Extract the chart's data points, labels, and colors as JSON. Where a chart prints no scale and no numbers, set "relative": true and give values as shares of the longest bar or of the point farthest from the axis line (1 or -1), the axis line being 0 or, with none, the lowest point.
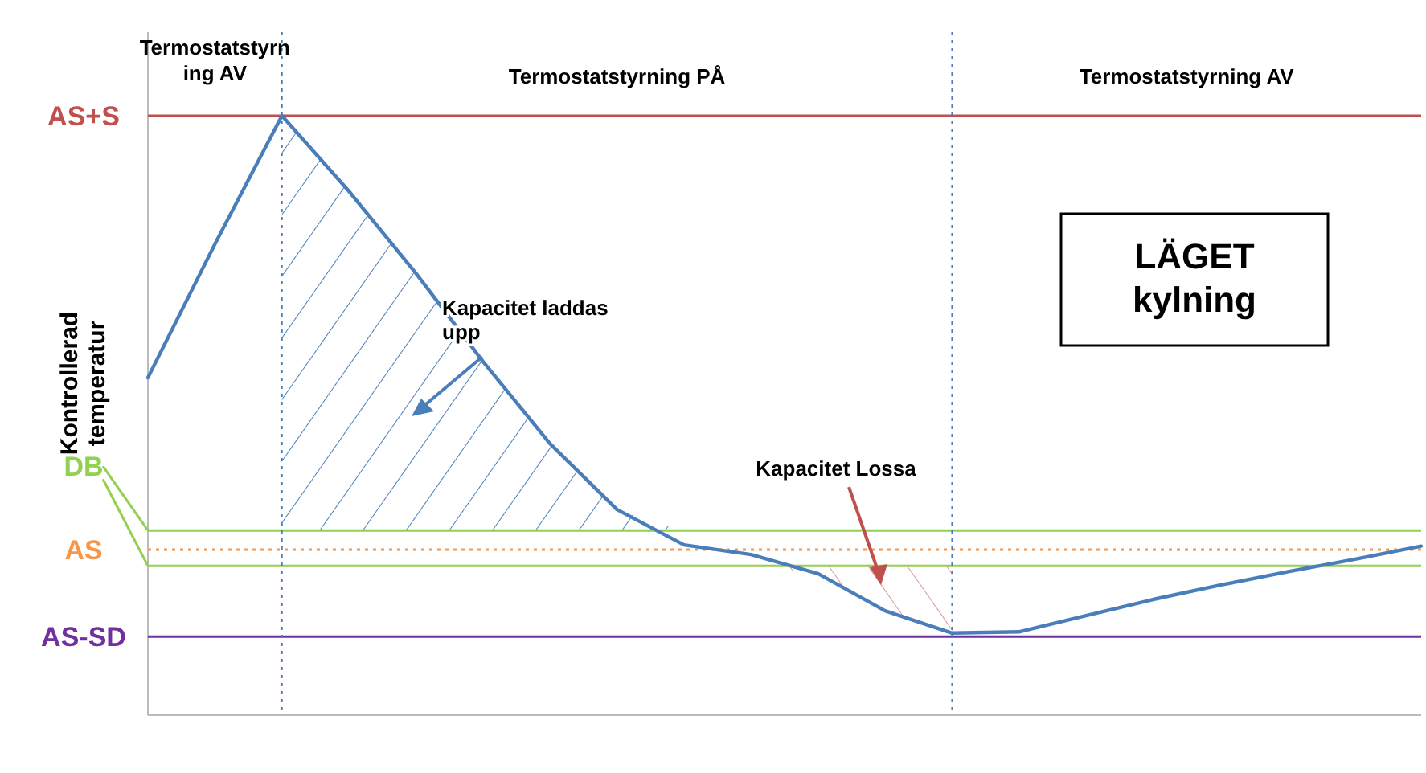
{
  "chart_data": {
    "type": "line",
    "relative": true,
    "ylabel": "Kontrollerad temperatur",
    "categories": [
      null,
      null,
      null,
      null,
      null,
      null,
      null,
      null,
      null,
      null,
      null,
      null,
      null,
      null,
      null,
      null,
      null,
      null,
      null,
      null
    ],
    "series": [
      {
        "color": "#4a7ebb",
        "values": [
          0.563,
          0.786,
          1,
          0.874,
          0.737,
          0.59,
          0.453,
          0.343,
          0.284,
          0.268,
          0.236,
          0.174,
          0.137,
          0.139,
          0.166,
          0.193,
          0.217,
          0.239,
          0.26,
          0.282
        ]
      }
    ],
    "ref_lines": [
      {
        "axis": "y",
        "value": 1,
        "label": "AS+S",
        "color": "#c0504d",
        "line_style": "solid"
      },
      {
        "axis": "y",
        "value": 0.308,
        "label": "DB",
        "color": "#92d050",
        "line_style": "solid"
      },
      {
        "axis": "y",
        "value": 0.276,
        "label": "AS",
        "color": "#f79646",
        "line_style": "dotted"
      },
      {
        "axis": "y",
        "value": 0.249,
        "color": "#92d050",
        "line_style": "solid"
      },
      {
        "axis": "y",
        "value": 0.131,
        "label": "AS-SD",
        "color": "#7030a0",
        "line_style": "solid"
      }
    ],
    "annotations": [
      "Termostatstyrning AV",
      "Termostatstyrning PÅ",
      "Termostatstyrning AV",
      "Kapacitet laddas upp",
      "Kapacitet Lossa",
      "LÄGET kylning"
    ],
    "marker": "none",
    "line_style": "solid"
  }
}
